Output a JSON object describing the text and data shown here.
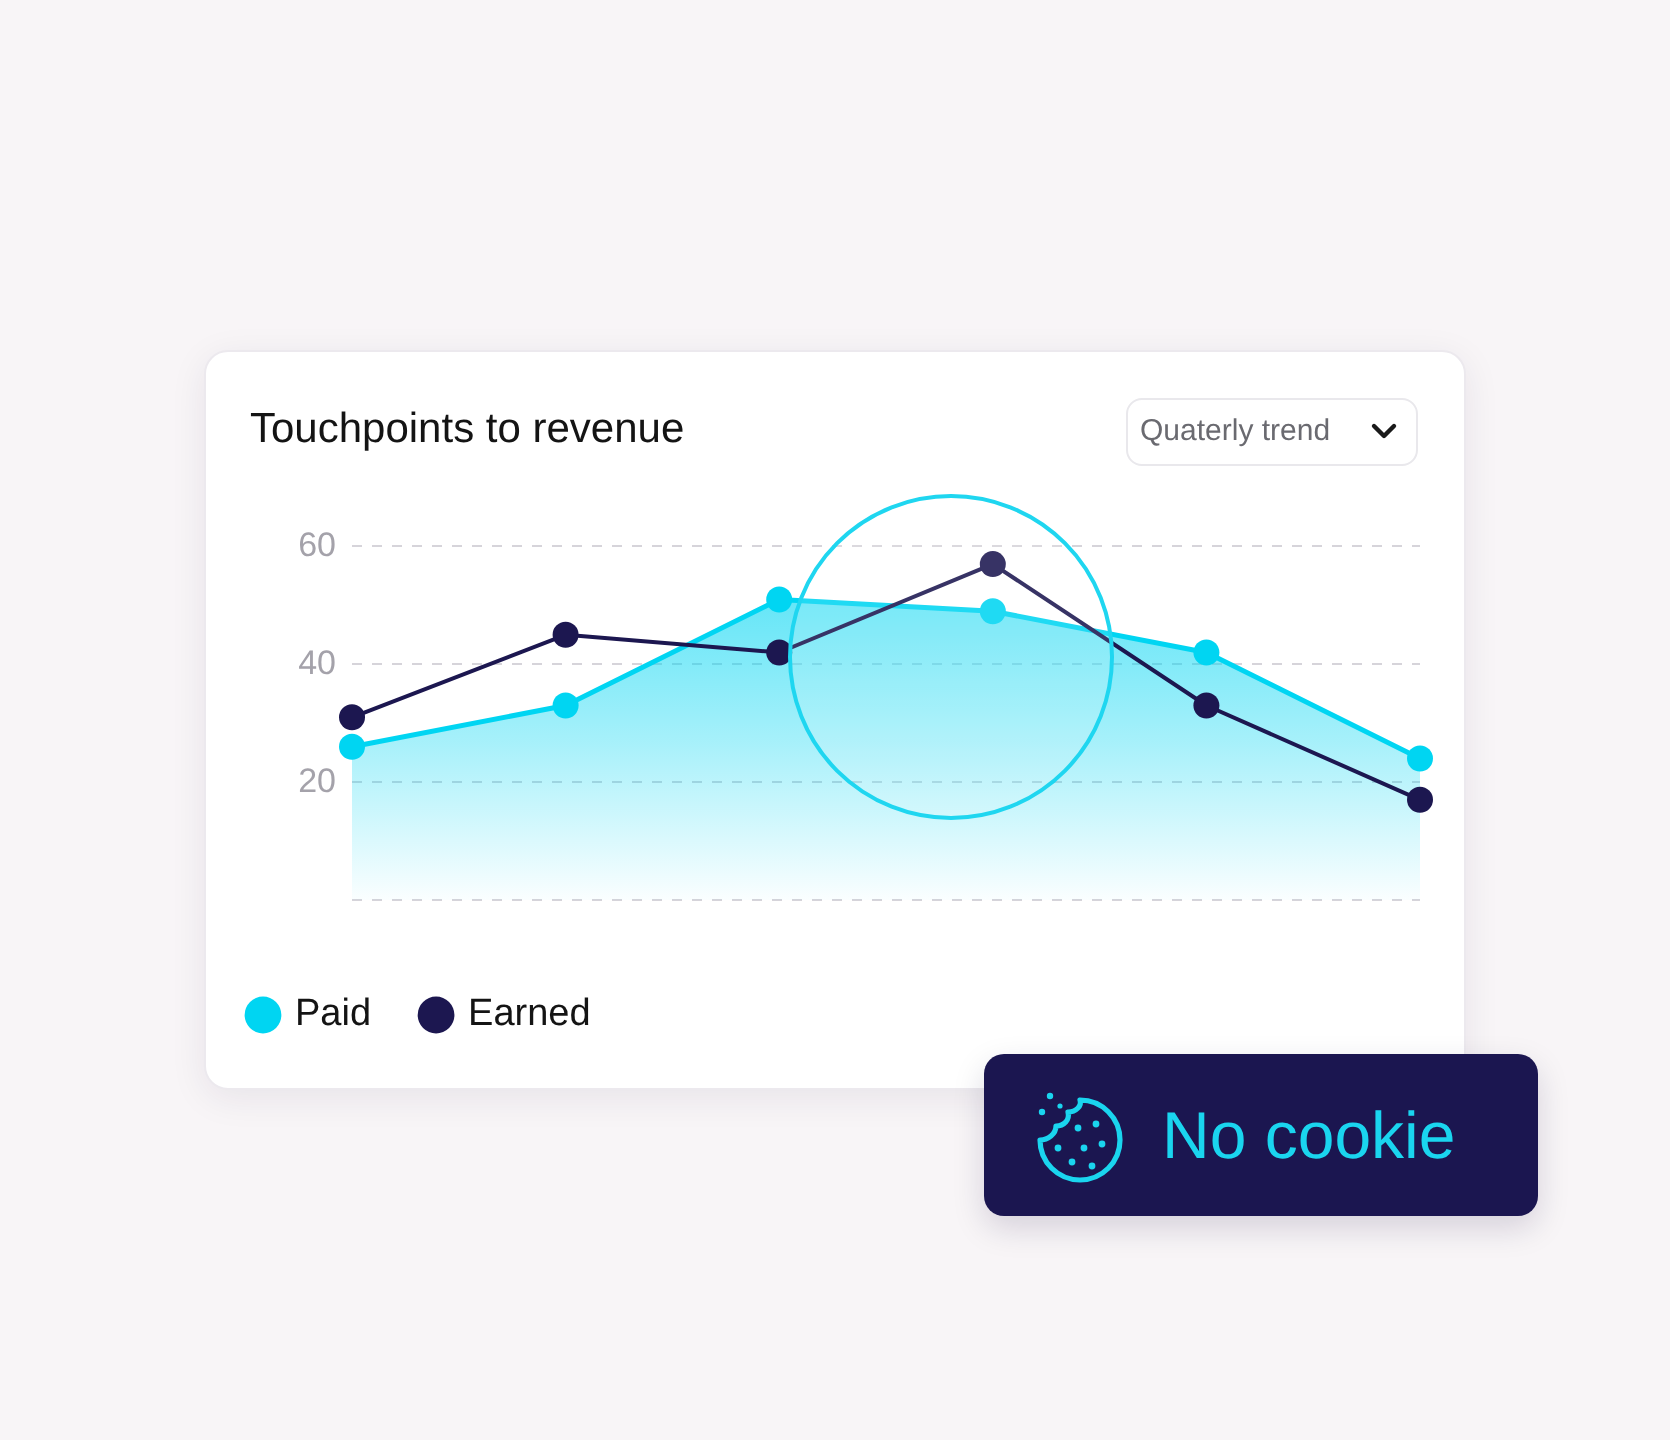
{
  "chart_data": {
    "type": "line",
    "title": "Touchpoints to revenue",
    "annotations": [
      "Quaterly trend",
      "No cookie"
    ],
    "categories": [
      null,
      null,
      null,
      null,
      null,
      null
    ],
    "series": [
      {
        "name": "Paid",
        "type": "area",
        "color": "#00d5f2",
        "values": [
          26,
          33,
          51,
          49,
          42,
          24
        ]
      },
      {
        "name": "Earned",
        "color": "#1c1750",
        "values": [
          31,
          45,
          42,
          57,
          33,
          17
        ]
      }
    ],
    "ylim": [
      0,
      60
    ],
    "yticks": [
      {
        "value": 0,
        "label": null
      },
      20,
      40,
      60
    ],
    "grid": "y",
    "legend": "bottom left",
    "tick_labels": "y",
    "marker": "circle"
  }
}
